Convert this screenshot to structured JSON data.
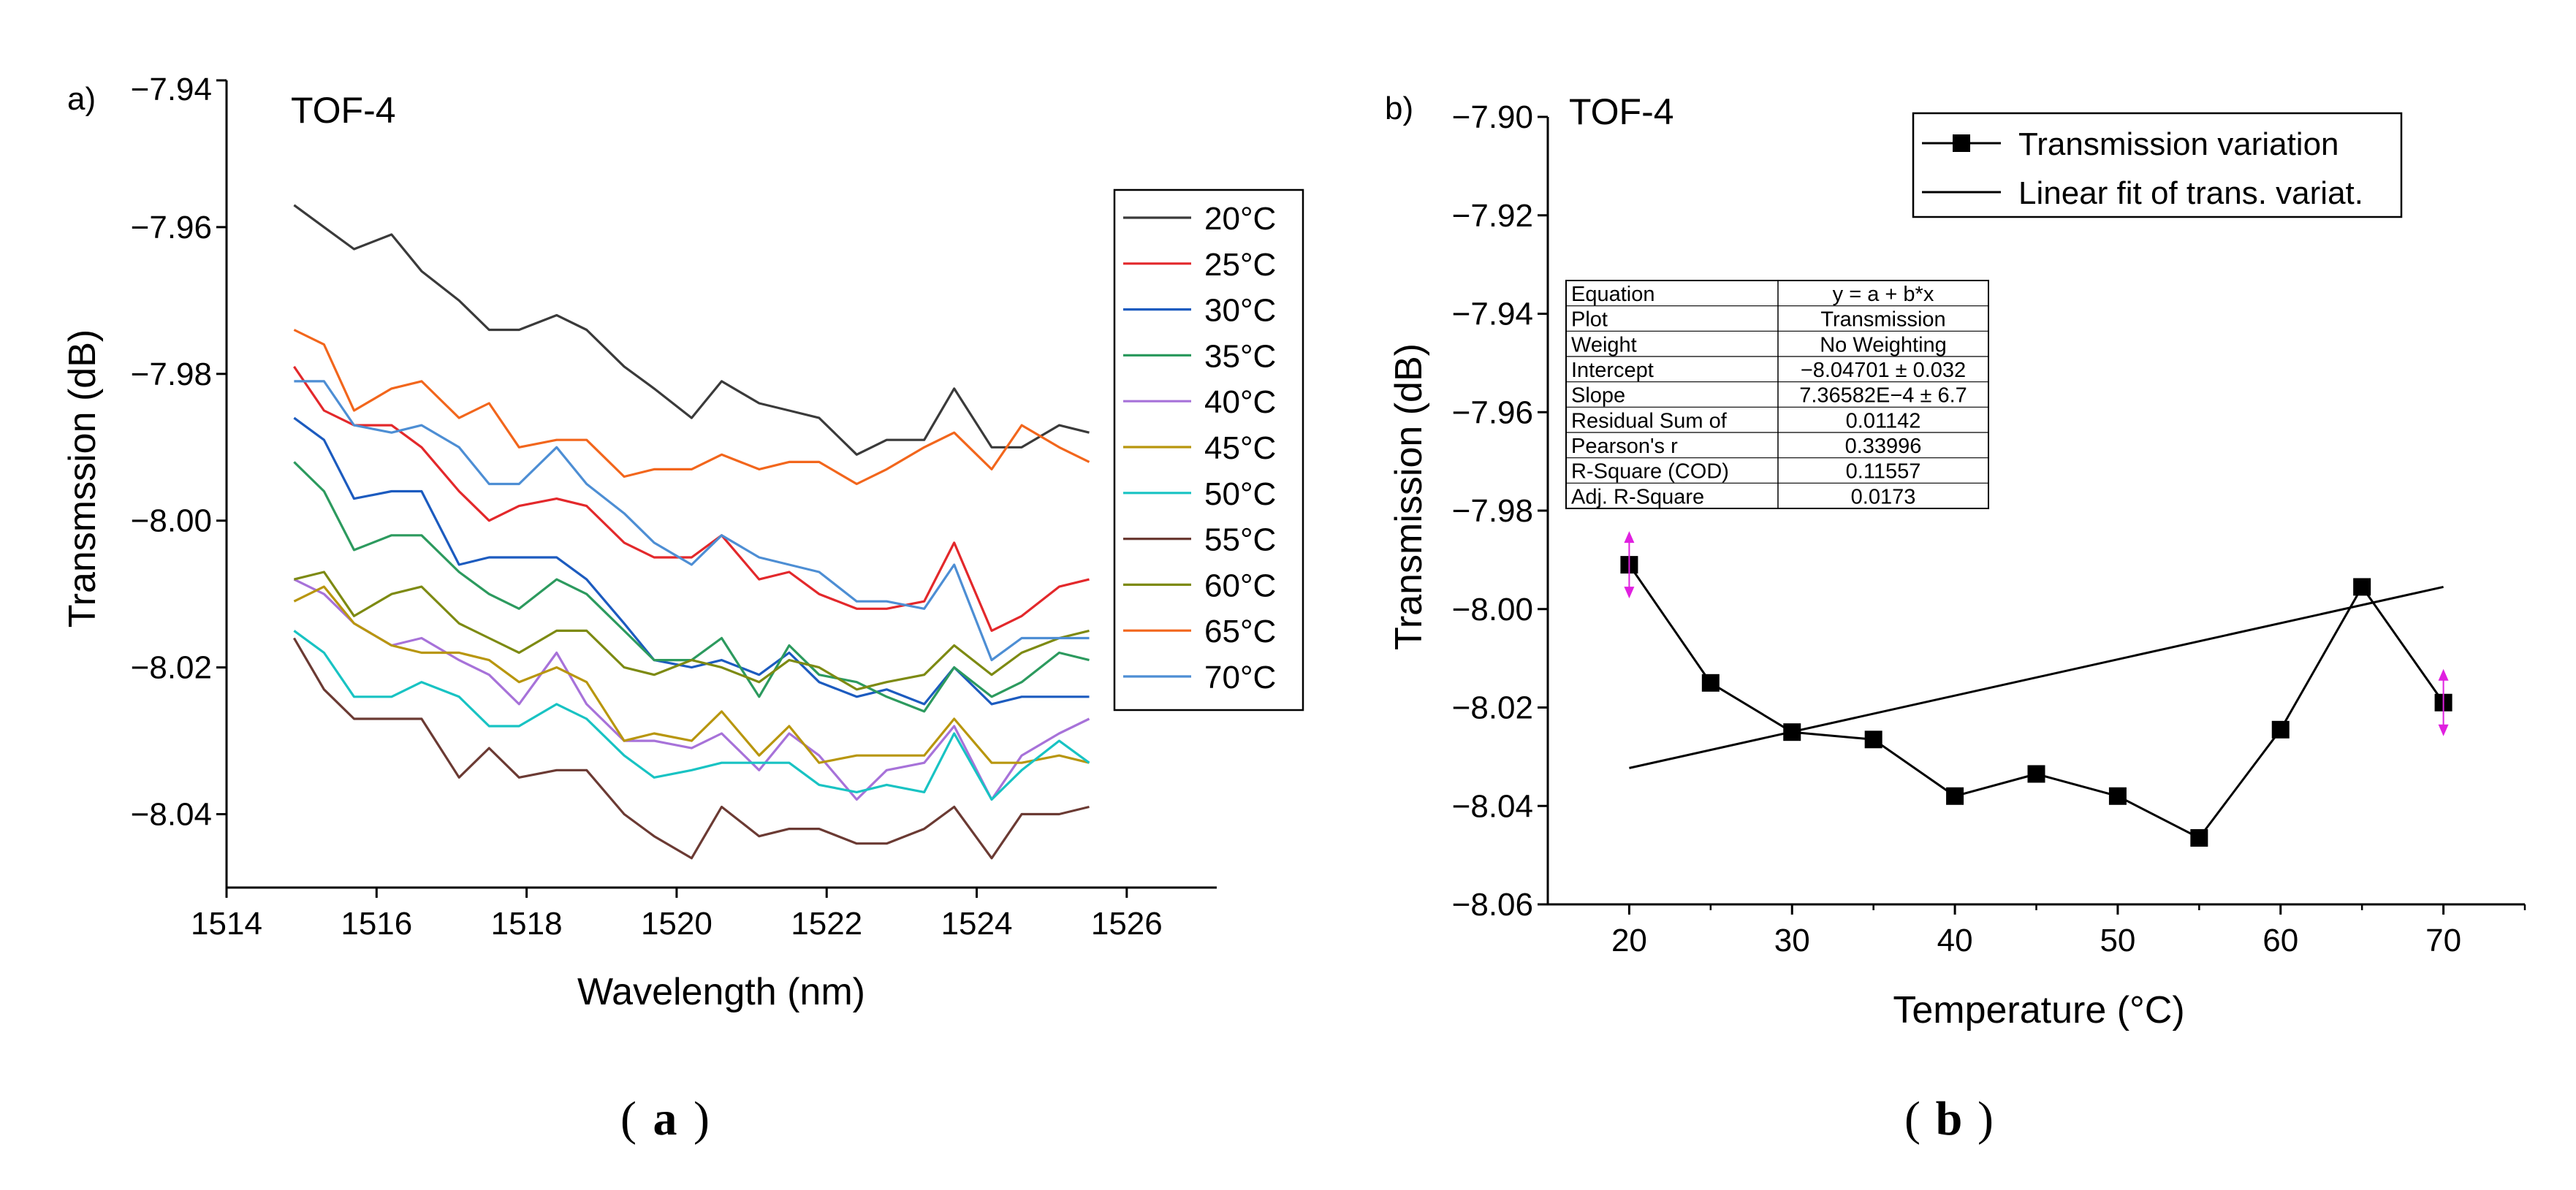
{
  "chart_data": [
    {
      "panel_label": "a)",
      "caption_letter": "a",
      "type": "line",
      "title": "TOF-4",
      "xlabel": "Wavelength (nm)",
      "ylabel": "Transmssion (dB)",
      "xlim": [
        1514,
        1527.2
      ],
      "ylim": [
        -8.05,
        -7.94
      ],
      "xticks": [
        1514,
        1516,
        1518,
        1520,
        1522,
        1524,
        1526
      ],
      "yticks": [
        -7.96,
        -7.98,
        -8.0,
        -8.02,
        -8.04
      ],
      "ytick_labels": [
        "−7.96",
        "−7.98",
        "−8.00",
        "−8.02",
        "−8.04"
      ],
      "top_tick_label": "−7.94",
      "legend_position": "right",
      "x": [
        1514.9,
        1515.3,
        1515.7,
        1516.2,
        1516.6,
        1517.1,
        1517.5,
        1517.9,
        1518.4,
        1518.8,
        1519.3,
        1519.7,
        1520.2,
        1520.6,
        1521.1,
        1521.5,
        1521.9,
        1522.4,
        1522.8,
        1523.3,
        1523.7,
        1524.2,
        1524.6,
        1525.1,
        1525.5
      ],
      "series": [
        {
          "name": "20°C",
          "color": "#3a3a3a",
          "values": [
            -7.957,
            -7.96,
            -7.963,
            -7.961,
            -7.966,
            -7.97,
            -7.974,
            -7.974,
            -7.972,
            -7.974,
            -7.979,
            -7.982,
            -7.986,
            -7.981,
            -7.984,
            -7.985,
            -7.986,
            -7.991,
            -7.989,
            -7.989,
            -7.982,
            -7.99,
            -7.99,
            -7.987,
            -7.988
          ]
        },
        {
          "name": "25°C",
          "color": "#e3282b",
          "values": [
            -7.979,
            -7.985,
            -7.987,
            -7.987,
            -7.99,
            -7.996,
            -8.0,
            -7.998,
            -7.997,
            -7.998,
            -8.003,
            -8.005,
            -8.005,
            -8.002,
            -8.008,
            -8.007,
            -8.01,
            -8.012,
            -8.012,
            -8.011,
            -8.003,
            -8.015,
            -8.013,
            -8.009,
            -8.008
          ]
        },
        {
          "name": "30°C",
          "color": "#1c5bbf",
          "values": [
            -7.986,
            -7.989,
            -7.997,
            -7.996,
            -7.996,
            -8.006,
            -8.005,
            -8.005,
            -8.005,
            -8.008,
            -8.014,
            -8.019,
            -8.02,
            -8.019,
            -8.021,
            -8.018,
            -8.022,
            -8.024,
            -8.023,
            -8.025,
            -8.02,
            -8.025,
            -8.024,
            -8.024,
            -8.024
          ]
        },
        {
          "name": "35°C",
          "color": "#2c9a5e",
          "values": [
            -7.992,
            -7.996,
            -8.004,
            -8.002,
            -8.002,
            -8.007,
            -8.01,
            -8.012,
            -8.008,
            -8.01,
            -8.015,
            -8.019,
            -8.019,
            -8.016,
            -8.024,
            -8.017,
            -8.021,
            -8.022,
            -8.024,
            -8.026,
            -8.02,
            -8.024,
            -8.022,
            -8.018,
            -8.019
          ]
        },
        {
          "name": "40°C",
          "color": "#a772d9",
          "values": [
            -8.008,
            -8.01,
            -8.014,
            -8.017,
            -8.016,
            -8.019,
            -8.021,
            -8.025,
            -8.018,
            -8.025,
            -8.03,
            -8.03,
            -8.031,
            -8.029,
            -8.034,
            -8.029,
            -8.032,
            -8.038,
            -8.034,
            -8.033,
            -8.028,
            -8.038,
            -8.032,
            -8.029,
            -8.027
          ]
        },
        {
          "name": "45°C",
          "color": "#b8960e",
          "values": [
            -8.011,
            -8.009,
            -8.014,
            -8.017,
            -8.018,
            -8.018,
            -8.019,
            -8.022,
            -8.02,
            -8.022,
            -8.03,
            -8.029,
            -8.03,
            -8.026,
            -8.032,
            -8.028,
            -8.033,
            -8.032,
            -8.032,
            -8.032,
            -8.027,
            -8.033,
            -8.033,
            -8.032,
            -8.033
          ]
        },
        {
          "name": "50°C",
          "color": "#18c3c3",
          "values": [
            -8.015,
            -8.018,
            -8.024,
            -8.024,
            -8.022,
            -8.024,
            -8.028,
            -8.028,
            -8.025,
            -8.027,
            -8.032,
            -8.035,
            -8.034,
            -8.033,
            -8.033,
            -8.033,
            -8.036,
            -8.037,
            -8.036,
            -8.037,
            -8.029,
            -8.038,
            -8.034,
            -8.03,
            -8.033
          ]
        },
        {
          "name": "55°C",
          "color": "#6b3a33",
          "values": [
            -8.016,
            -8.023,
            -8.027,
            -8.027,
            -8.027,
            -8.035,
            -8.031,
            -8.035,
            -8.034,
            -8.034,
            -8.04,
            -8.043,
            -8.046,
            -8.039,
            -8.043,
            -8.042,
            -8.042,
            -8.044,
            -8.044,
            -8.042,
            -8.039,
            -8.046,
            -8.04,
            -8.04,
            -8.039
          ]
        },
        {
          "name": "60°C",
          "color": "#7d8a12",
          "values": [
            -8.008,
            -8.007,
            -8.013,
            -8.01,
            -8.009,
            -8.014,
            -8.016,
            -8.018,
            -8.015,
            -8.015,
            -8.02,
            -8.021,
            -8.019,
            -8.02,
            -8.022,
            -8.019,
            -8.02,
            -8.023,
            -8.022,
            -8.021,
            -8.017,
            -8.021,
            -8.018,
            -8.016,
            -8.015
          ]
        },
        {
          "name": "65°C",
          "color": "#f2661c",
          "values": [
            -7.974,
            -7.976,
            -7.985,
            -7.982,
            -7.981,
            -7.986,
            -7.984,
            -7.99,
            -7.989,
            -7.989,
            -7.994,
            -7.993,
            -7.993,
            -7.991,
            -7.993,
            -7.992,
            -7.992,
            -7.995,
            -7.993,
            -7.99,
            -7.988,
            -7.993,
            -7.987,
            -7.99,
            -7.992
          ]
        },
        {
          "name": "70°C",
          "color": "#4d8ed4",
          "values": [
            -7.981,
            -7.981,
            -7.987,
            -7.988,
            -7.987,
            -7.99,
            -7.995,
            -7.995,
            -7.99,
            -7.995,
            -7.999,
            -8.003,
            -8.006,
            -8.002,
            -8.005,
            -8.006,
            -8.007,
            -8.011,
            -8.011,
            -8.012,
            -8.006,
            -8.019,
            -8.016,
            -8.016,
            -8.016
          ]
        }
      ]
    },
    {
      "panel_label": "b)",
      "caption_letter": "b",
      "type": "scatter",
      "title": "TOF-4",
      "xlabel": "Temperature (°C)",
      "ylabel": "Transmission (dB)",
      "xlim": [
        15,
        75
      ],
      "ylim": [
        -8.06,
        -7.9
      ],
      "xticks": [
        20,
        30,
        40,
        50,
        60,
        70
      ],
      "yticks": [
        -7.9,
        -7.92,
        -7.94,
        -7.96,
        -7.98,
        -8.0,
        -8.02,
        -8.04,
        -8.06
      ],
      "ytick_labels": [
        "−7.90",
        "−7.92",
        "−7.94",
        "−7.96",
        "−7.98",
        "−8.00",
        "−8.02",
        "−8.04",
        "−8.06"
      ],
      "legend_position": "top-right",
      "legend": [
        "Transmission variation",
        "Linear fit of trans. variat."
      ],
      "series": [
        {
          "name": "Transmission variation",
          "color": "#000000",
          "x": [
            20,
            25,
            30,
            35,
            40,
            45,
            50,
            55,
            60,
            65,
            70
          ],
          "values": [
            -7.991,
            -8.015,
            -8.025,
            -8.0265,
            -8.038,
            -8.0335,
            -8.038,
            -8.0465,
            -8.0245,
            -7.9955,
            -8.019
          ]
        }
      ],
      "fit": {
        "name": "Linear fit of trans. variat.",
        "x": [
          20,
          70
        ],
        "values": [
          -8.0323,
          -7.9955
        ]
      },
      "error_marker_points": [
        20,
        70
      ],
      "error_marker_color": "#e020e0",
      "stats_table": [
        [
          "Equation",
          "y = a + b*x"
        ],
        [
          "Plot",
          "Transmission"
        ],
        [
          "Weight",
          "No Weighting"
        ],
        [
          "Intercept",
          "−8.04701 ± 0.032"
        ],
        [
          "Slope",
          "7.36582E−4 ± 6.7"
        ],
        [
          "Residual Sum of",
          "0.01142"
        ],
        [
          "Pearson's r",
          "0.33996"
        ],
        [
          "R-Square (COD)",
          "0.11557"
        ],
        [
          "Adj. R-Square",
          "0.0173"
        ]
      ]
    }
  ]
}
